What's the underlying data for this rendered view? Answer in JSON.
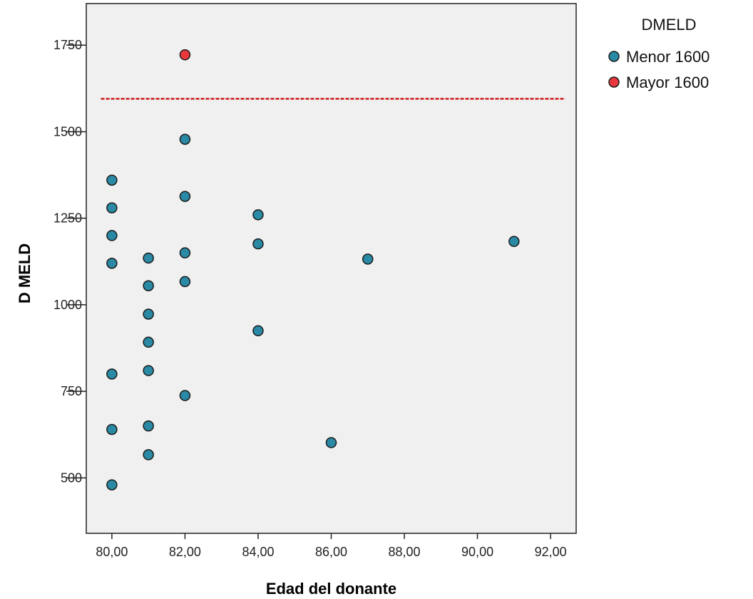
{
  "chart_data": {
    "type": "scatter",
    "xlabel": "Edad del donante",
    "ylabel": "D MELD",
    "xlim": [
      79.3,
      92.7
    ],
    "ylim": [
      340,
      1870
    ],
    "x_ticks": [
      80,
      82,
      84,
      86,
      88,
      90,
      92
    ],
    "x_tick_labels": [
      "80,00",
      "82,00",
      "84,00",
      "86,00",
      "88,00",
      "90,00",
      "92,00"
    ],
    "y_ticks": [
      500,
      750,
      1000,
      1250,
      1500,
      1750
    ],
    "y_tick_labels": [
      "500",
      "750",
      "1000",
      "1250",
      "1500",
      "1750"
    ],
    "grid": false,
    "plot_background": "#f0f0f0",
    "legend": {
      "title": "DMELD",
      "placement": "right",
      "entries": [
        {
          "label": "Menor 1600",
          "color": "#2a8aa5"
        },
        {
          "label": "Mayor 1600",
          "color": "#e8383d"
        }
      ]
    },
    "reference_line": {
      "y": 1595,
      "x_range": [
        79.7,
        92.4
      ],
      "color": "#cc1f1f",
      "style": "dashed"
    },
    "series": [
      {
        "name": "Menor 1600",
        "color": "#2a8aa5",
        "points": [
          [
            80,
            1360
          ],
          [
            80,
            1280
          ],
          [
            80,
            1200
          ],
          [
            80,
            1120
          ],
          [
            80,
            800
          ],
          [
            80,
            640
          ],
          [
            80,
            480
          ],
          [
            81,
            1135
          ],
          [
            81,
            1055
          ],
          [
            81,
            973
          ],
          [
            81,
            892
          ],
          [
            81,
            810
          ],
          [
            81,
            650
          ],
          [
            81,
            567
          ],
          [
            82,
            1478
          ],
          [
            82,
            1313
          ],
          [
            82,
            1150
          ],
          [
            82,
            1067
          ],
          [
            82,
            738
          ],
          [
            84,
            1260
          ],
          [
            84,
            1176
          ],
          [
            84,
            925
          ],
          [
            86,
            602
          ],
          [
            87,
            1132
          ],
          [
            91,
            1183
          ]
        ]
      },
      {
        "name": "Mayor 1600",
        "color": "#e8383d",
        "points": [
          [
            82,
            1722
          ]
        ]
      }
    ]
  }
}
